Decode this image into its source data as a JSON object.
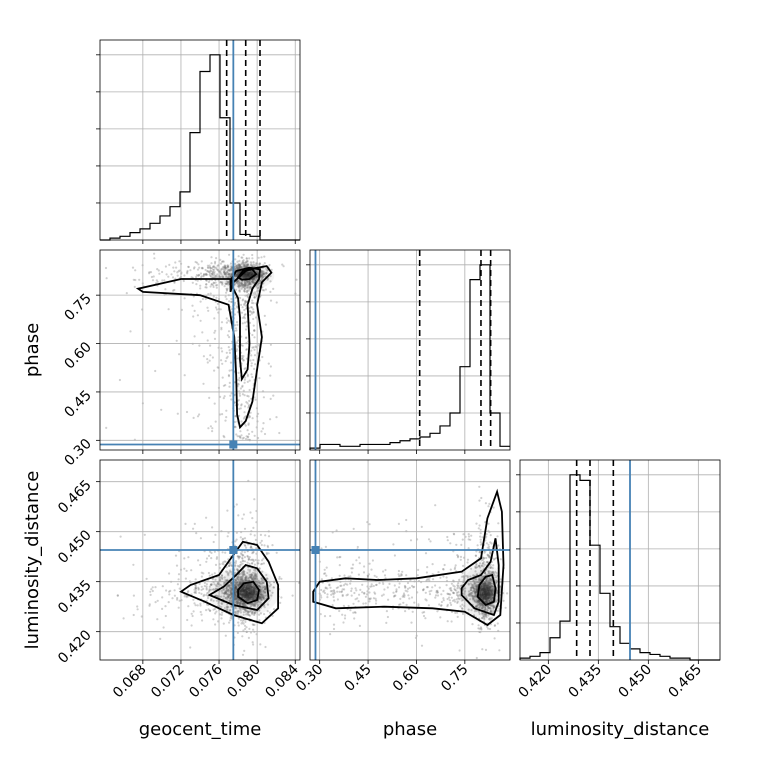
{
  "chart_data": {
    "type": "scatter",
    "description_kind": "corner-plot",
    "parameters": [
      {
        "name": "geocent_time",
        "label": "geocent_time",
        "range": [
          0.0635,
          0.0845
        ],
        "ticks": [
          "0.068",
          "0.072",
          "0.076",
          "0.080",
          "0.084"
        ],
        "tick_values": [
          0.068,
          0.072,
          0.076,
          0.08,
          0.084
        ],
        "truth": 0.0775,
        "quantiles": [
          0.0768,
          0.0788,
          0.0803
        ],
        "hist": {
          "edges_start": 0.0635,
          "bin_width": 0.00105,
          "counts": [
            0.0,
            0.01,
            0.02,
            0.04,
            0.06,
            0.09,
            0.13,
            0.18,
            0.26,
            0.58,
            0.91,
            1.0,
            0.66,
            0.2,
            0.03,
            0.02,
            0.0,
            0.0,
            0.0,
            0.0
          ]
        }
      },
      {
        "name": "phase",
        "label": "phase",
        "range": [
          0.27,
          0.89
        ],
        "ticks": [
          "0.30",
          "0.45",
          "0.60",
          "0.75"
        ],
        "tick_values": [
          0.3,
          0.45,
          0.6,
          0.75
        ],
        "truth": 0.287,
        "quantiles": [
          0.61,
          0.8,
          0.83
        ],
        "hist": {
          "edges_start": 0.27,
          "bin_width": 0.031,
          "counts": [
            0.01,
            0.03,
            0.03,
            0.02,
            0.02,
            0.03,
            0.03,
            0.03,
            0.04,
            0.05,
            0.06,
            0.07,
            0.09,
            0.13,
            0.2,
            0.45,
            0.92,
            1.0,
            0.2,
            0.02
          ]
        }
      },
      {
        "name": "luminosity_distance",
        "label": "luminosity_distance",
        "range": [
          0.4115,
          0.4715
        ],
        "ticks": [
          "0.420",
          "0.435",
          "0.450",
          "0.465"
        ],
        "tick_values": [
          0.42,
          0.435,
          0.45,
          0.465
        ],
        "truth": 0.4445,
        "quantiles": [
          0.4285,
          0.4325,
          0.4395
        ],
        "hist": {
          "edges_start": 0.4115,
          "bin_width": 0.003,
          "counts": [
            0.01,
            0.02,
            0.04,
            0.12,
            0.21,
            1.0,
            0.97,
            0.62,
            0.36,
            0.18,
            0.09,
            0.06,
            0.04,
            0.03,
            0.02,
            0.01,
            0.01,
            0.0,
            0.0,
            0.0
          ]
        }
      }
    ],
    "truth_color": "#4682b4",
    "grid": true,
    "legend": "none"
  }
}
